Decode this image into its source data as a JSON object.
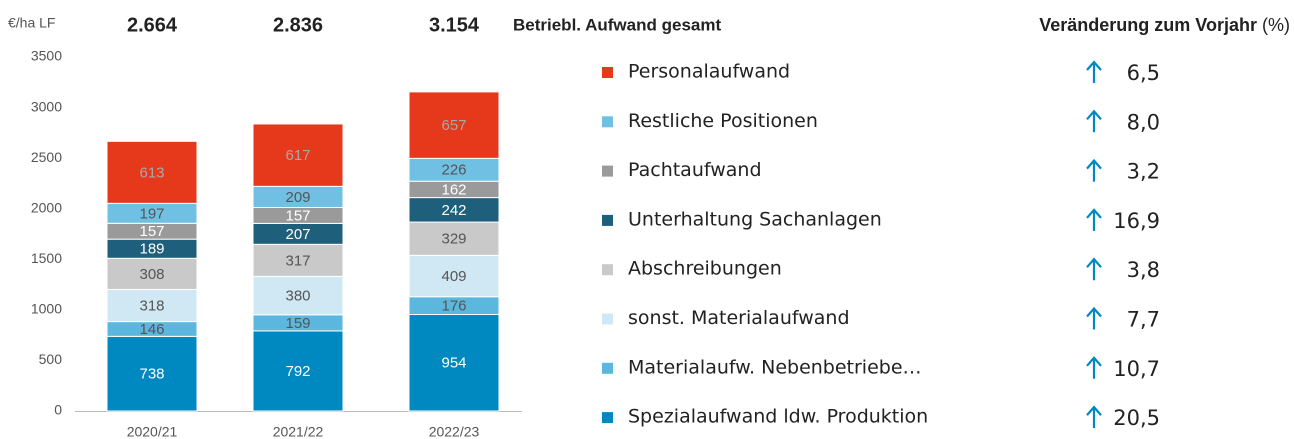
{
  "chart_data": {
    "type": "stacked_bar",
    "y_label": "€/ha LF",
    "categories": [
      "2020/21",
      "2021/22",
      "2022/23"
    ],
    "ylim": [
      0,
      3500
    ],
    "yticks": [
      0,
      500,
      1000,
      1500,
      2000,
      2500,
      3000,
      3500
    ],
    "grid": false,
    "totals": {
      "name": "Betriebl. Aufwand gesamt",
      "values": [
        2664,
        2836,
        3154
      ],
      "value_labels": [
        "2.664",
        "2.836",
        "3.154"
      ]
    },
    "change_title": "Veränderung zum Vorjahr",
    "change_unit": "(%)",
    "series": [
      {
        "name": "Spezialaufwand ldw. Produktion",
        "color": "#0088c0",
        "label_color": "#ffffff",
        "values": [
          738,
          792,
          954
        ],
        "change": 20.5,
        "change_label": "20,5"
      },
      {
        "name": "Materialaufw. Nebenbetriebe…",
        "color": "#5bb7dd",
        "label_color": "#555555",
        "values": [
          146,
          159,
          176
        ],
        "change": 10.7,
        "change_label": "10,7"
      },
      {
        "name": "sonst. Materialaufwand",
        "color": "#cfe8f4",
        "label_color": "#555555",
        "values": [
          318,
          380,
          409
        ],
        "change": 7.7,
        "change_label": "7,7"
      },
      {
        "name": "Abschreibungen",
        "color": "#c9c9c9",
        "label_color": "#555555",
        "values": [
          308,
          317,
          329
        ],
        "change": 3.8,
        "change_label": "3,8"
      },
      {
        "name": "Unterhaltung Sachanlagen",
        "color": "#1e5f7b",
        "label_color": "#ffffff",
        "values": [
          189,
          207,
          242
        ],
        "change": 16.9,
        "change_label": "16,9"
      },
      {
        "name": "Pachtaufwand",
        "color": "#9a9a9a",
        "label_color": "#ffffff",
        "values": [
          157,
          157,
          162
        ],
        "change": 3.2,
        "change_label": "3,2"
      },
      {
        "name": "Restliche Positionen",
        "color": "#6fc0e2",
        "label_color": "#555555",
        "values": [
          197,
          209,
          226
        ],
        "change": 8.0,
        "change_label": "8,0"
      },
      {
        "name": "Personalaufwand",
        "color": "#e6391b",
        "label_color": "#a8a8a8",
        "values": [
          613,
          617,
          657
        ],
        "change": 6.5,
        "change_label": "6,5"
      }
    ]
  }
}
